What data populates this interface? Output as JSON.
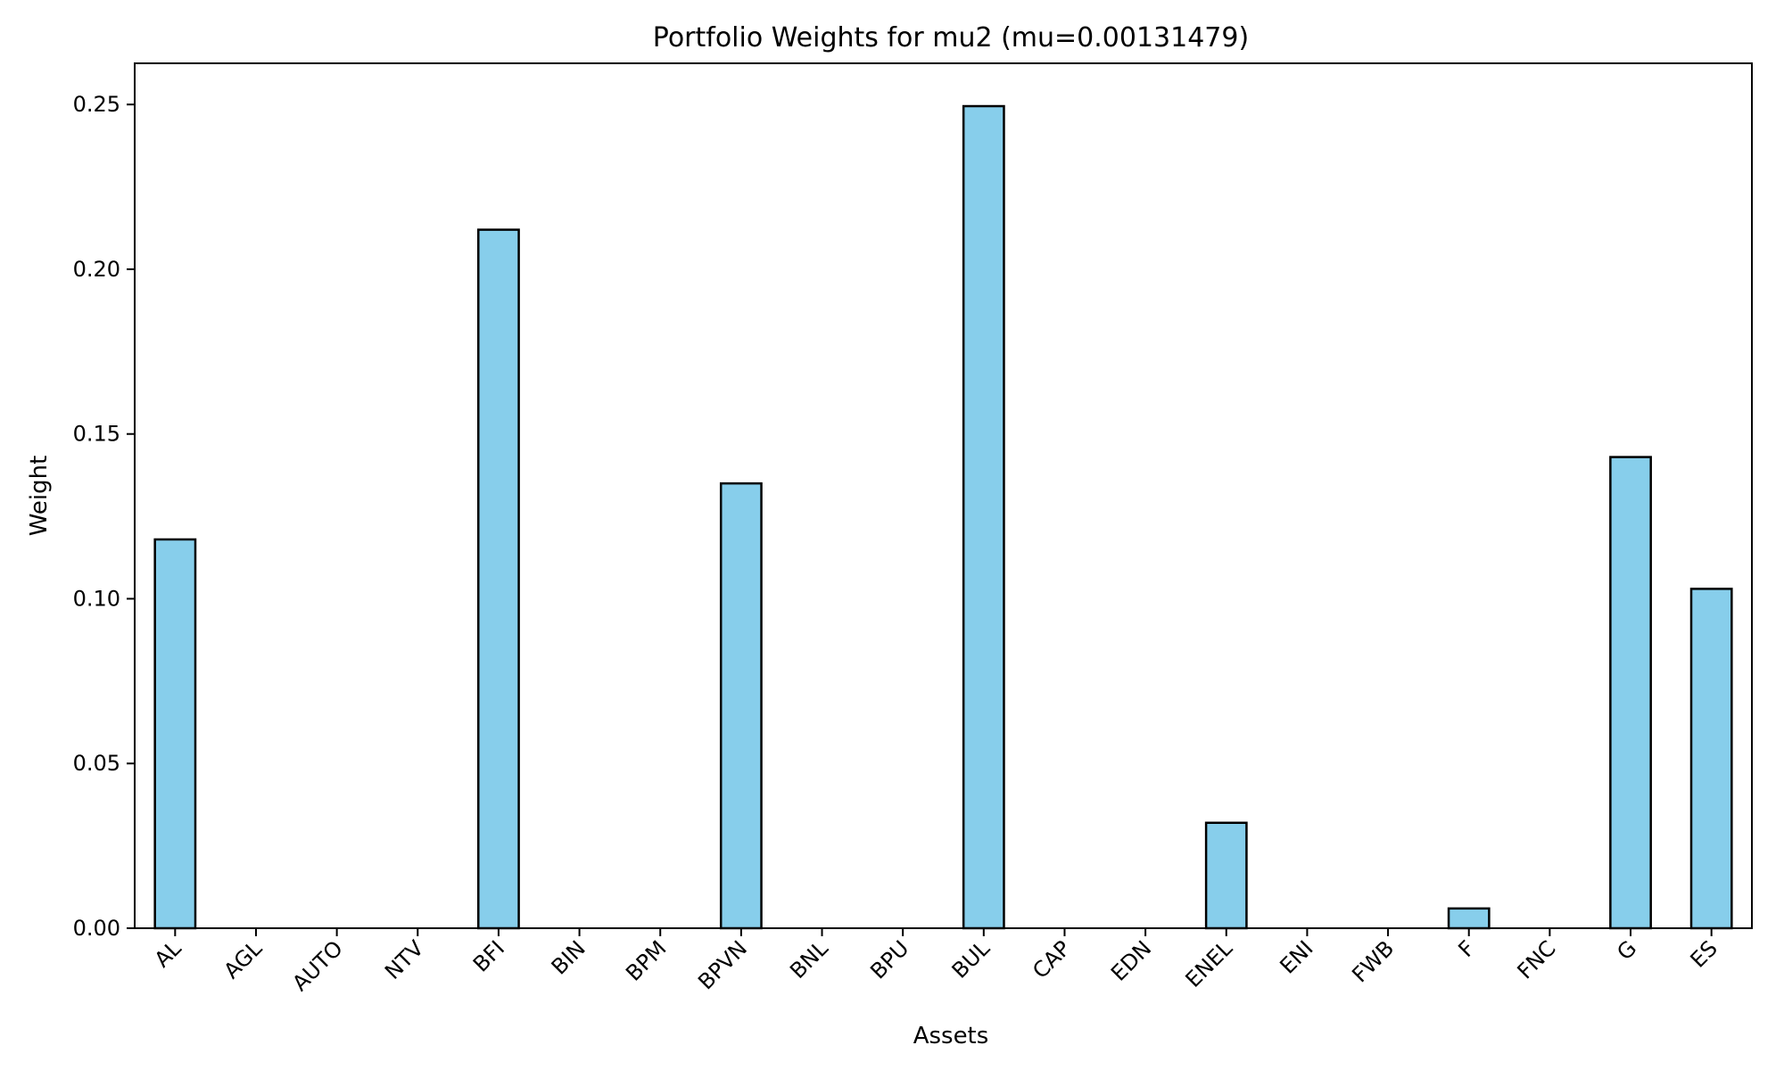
{
  "chart_data": {
    "type": "bar",
    "title": "Portfolio Weights for mu2 (mu=0.00131479)",
    "xlabel": "Assets",
    "ylabel": "Weight",
    "categories": [
      "AL",
      "AGL",
      "AUTO",
      "NTV",
      "BFI",
      "BIN",
      "BPM",
      "BPVN",
      "BNL",
      "BPU",
      "BUL",
      "CAP",
      "EDN",
      "ENEL",
      "ENI",
      "FWB",
      "F",
      "FNC",
      "G",
      "ES"
    ],
    "values": [
      0.118,
      0,
      0,
      0,
      0.212,
      0,
      0,
      0.135,
      0,
      0,
      0.2495,
      0,
      0,
      0.032,
      0,
      0,
      0.006,
      0,
      0.143,
      0.103
    ],
    "yticks": [
      "0.00",
      "0.05",
      "0.10",
      "0.15",
      "0.20",
      "0.25"
    ],
    "ylim": [
      0,
      0.2625
    ],
    "x_tick_rotation": 45,
    "grid": false,
    "bar_color": "#87ceeb",
    "edge_color": "#000000"
  }
}
